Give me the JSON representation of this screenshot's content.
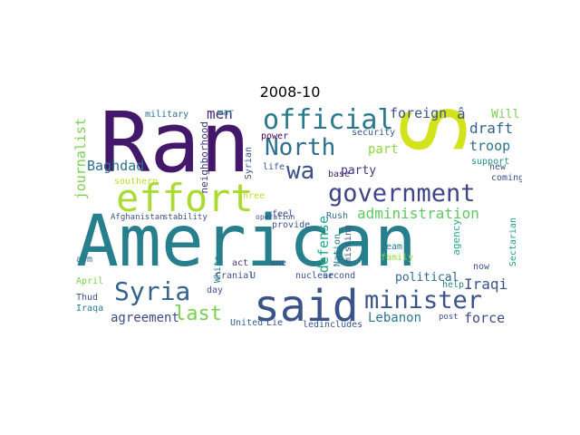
{
  "title": "2008-10",
  "words": [
    {
      "text": "Ran",
      "color": "#43176a"
    },
    {
      "text": "S",
      "color": "#d2e21b"
    },
    {
      "text": "American",
      "color": "#277f8e"
    },
    {
      "text": "said",
      "color": "#3b528b"
    },
    {
      "text": "effort",
      "color": "#a9db33"
    },
    {
      "text": "official",
      "color": "#2a788e"
    },
    {
      "text": "North",
      "color": "#2d6f8e"
    },
    {
      "text": "wa",
      "color": "#3c4f8a"
    },
    {
      "text": "government",
      "color": "#414487"
    },
    {
      "text": "minister",
      "color": "#3b528b"
    },
    {
      "text": "Syria",
      "color": "#33638d"
    },
    {
      "text": "last",
      "color": "#7ad151"
    },
    {
      "text": "administration",
      "color": "#5ec962"
    },
    {
      "text": "journalist",
      "color": "#7ad151"
    },
    {
      "text": "defense",
      "color": "#22a884"
    },
    {
      "text": "foreign",
      "color": "#3b528b"
    },
    {
      "text": "draft",
      "color": "#33638d"
    },
    {
      "text": "troop",
      "color": "#2c738e"
    },
    {
      "text": "party",
      "color": "#46327e"
    },
    {
      "text": "part",
      "color": "#90d743"
    },
    {
      "text": "Baghdad",
      "color": "#2c728e"
    },
    {
      "text": "men",
      "color": "#482878"
    },
    {
      "text": "Lebanon",
      "color": "#2a788e"
    },
    {
      "text": "force",
      "color": "#3e4a89"
    },
    {
      "text": "agreement",
      "color": "#3e4989"
    },
    {
      "text": "Iraqi",
      "color": "#3b528b"
    },
    {
      "text": "Will",
      "color": "#7ad151"
    },
    {
      "text": "security",
      "color": "#3b528b"
    },
    {
      "text": "neighborhood",
      "color": "#453781"
    },
    {
      "text": "military",
      "color": "#2d708e"
    },
    {
      "text": "war",
      "color": "#26828e"
    },
    {
      "text": "support",
      "color": "#21918c"
    },
    {
      "text": "new",
      "color": "#3b528b"
    },
    {
      "text": "coming",
      "color": "#3b528b"
    },
    {
      "text": "base",
      "color": "#482475"
    },
    {
      "text": "power",
      "color": "#440154"
    },
    {
      "text": "Rush",
      "color": "#2f6c8e"
    },
    {
      "text": "political",
      "color": "#31688e"
    },
    {
      "text": "nuclear",
      "color": "#3b528b"
    },
    {
      "text": "second",
      "color": "#3b528b"
    },
    {
      "text": "team",
      "color": "#2a788e"
    },
    {
      "text": "family",
      "color": "#8fd744"
    },
    {
      "text": "missing",
      "color": "#3b528b"
    },
    {
      "text": "Nation",
      "color": "#2a788e"
    },
    {
      "text": "help",
      "color": "#26828e"
    },
    {
      "text": "post",
      "color": "#3b528b"
    },
    {
      "text": "now",
      "color": "#3b528b"
    },
    {
      "text": "Sectarian",
      "color": "#1f9e89"
    },
    {
      "text": "United",
      "color": "#33638d"
    },
    {
      "text": "led",
      "color": "#3b528b"
    },
    {
      "text": "includes",
      "color": "#3b528b"
    },
    {
      "text": "day",
      "color": "#3b528b"
    },
    {
      "text": "act",
      "color": "#443a83"
    },
    {
      "text": "one",
      "color": "#3b528b"
    },
    {
      "text": "April",
      "color": "#7ad151"
    },
    {
      "text": "Thud",
      "color": "#3b528b"
    },
    {
      "text": "Iraqa",
      "color": "#2a788e"
    },
    {
      "text": "arm",
      "color": "#2a788e"
    },
    {
      "text": "southern",
      "color": "#b8de29"
    },
    {
      "text": "three",
      "color": "#b8de29"
    },
    {
      "text": "White",
      "color": "#26828e"
    },
    {
      "text": "Syrian",
      "color": "#3b528b"
    },
    {
      "text": "life",
      "color": "#3b528b"
    },
    {
      "text": "feel",
      "color": "#3b528b"
    },
    {
      "text": "provide",
      "color": "#3b528b"
    },
    {
      "text": "operation",
      "color": "#3b528b"
    },
    {
      "text": "Afghanistan",
      "color": "#3b528b"
    },
    {
      "text": "stability",
      "color": "#3b528b"
    },
    {
      "text": "Cranial",
      "color": "#3b528b"
    },
    {
      "text": "agency",
      "color": "#22a884"
    },
    {
      "text": "Lie",
      "color": "#3b528b"
    },
    {
      "text": "â",
      "color": "#3b528b"
    },
    {
      "text": "U",
      "color": "#3b528b"
    }
  ]
}
